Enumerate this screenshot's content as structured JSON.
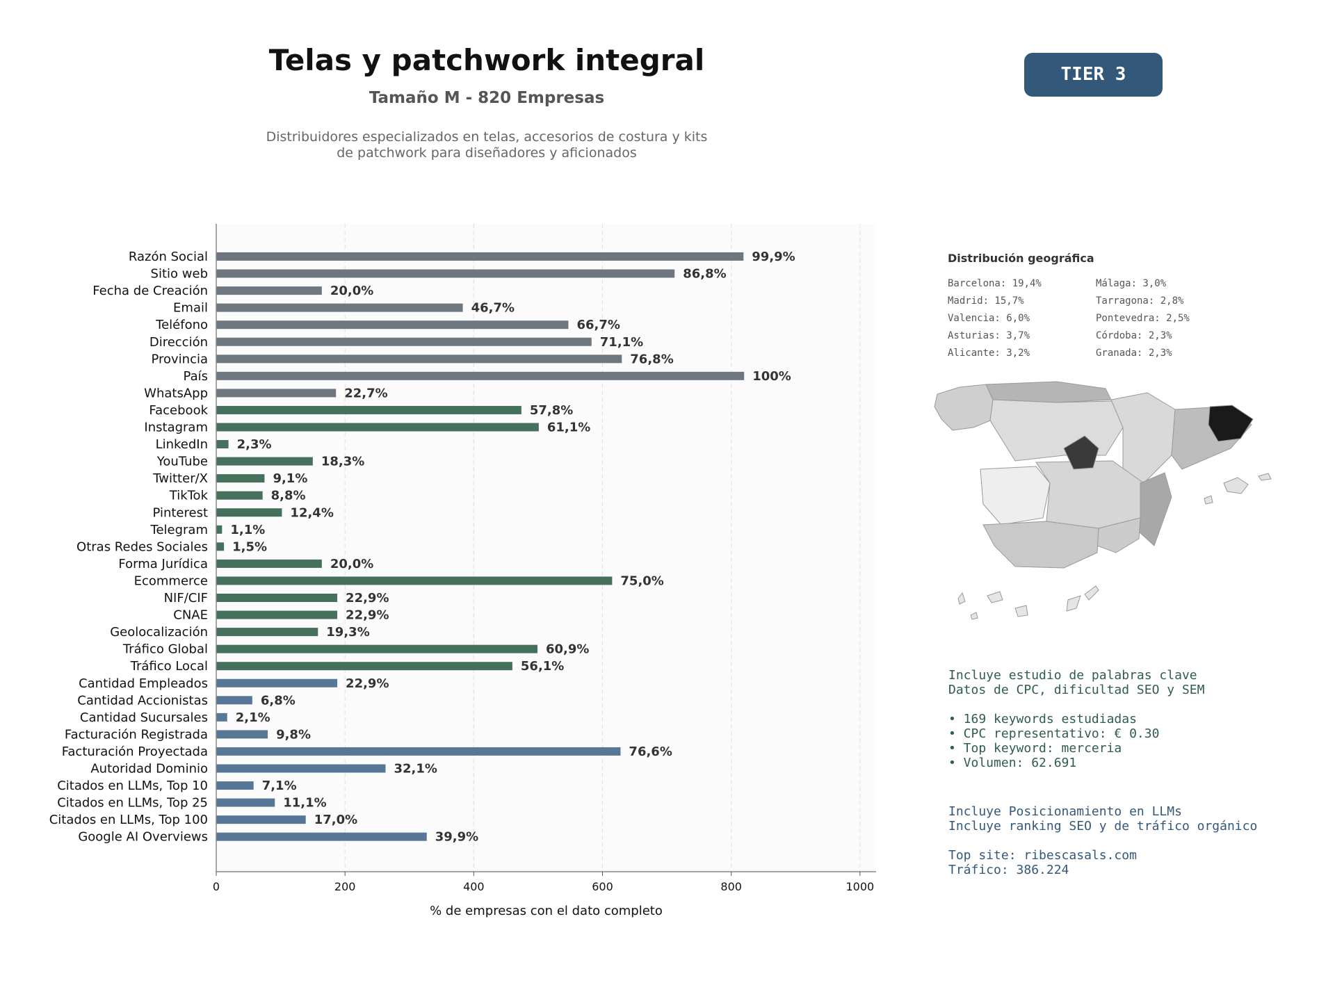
{
  "header": {
    "title": "Telas y patchwork integral",
    "subtitle": "Tamaño M - 820 Empresas",
    "description_line1": "Distribuidores especializados en telas, accesorios de costura y kits",
    "description_line2": "de patchwork para diseñadores y aficionados",
    "tier_badge": "TIER 3"
  },
  "colors": {
    "gray": "#6e7780",
    "green": "#44705c",
    "blue": "#587796",
    "tier": "#34587a"
  },
  "chart_data": {
    "type": "bar",
    "orientation": "horizontal",
    "xlabel": "% de empresas con el dato completo",
    "xlim": [
      0,
      1025
    ],
    "xticks": [
      0,
      200,
      400,
      600,
      800,
      1000
    ],
    "grid": "vertical dashed",
    "bars": [
      {
        "label": "Razón Social",
        "value": 819,
        "pct_label": "99,9%",
        "group": "gray"
      },
      {
        "label": "Sitio web",
        "value": 712,
        "pct_label": "86,8%",
        "group": "gray"
      },
      {
        "label": "Fecha de Creación",
        "value": 164,
        "pct_label": "20,0%",
        "group": "gray"
      },
      {
        "label": "Email",
        "value": 383,
        "pct_label": "46,7%",
        "group": "gray"
      },
      {
        "label": "Teléfono",
        "value": 547,
        "pct_label": "66,7%",
        "group": "gray"
      },
      {
        "label": "Dirección",
        "value": 583,
        "pct_label": "71,1%",
        "group": "gray"
      },
      {
        "label": "Provincia",
        "value": 630,
        "pct_label": "76,8%",
        "group": "gray"
      },
      {
        "label": "País",
        "value": 820,
        "pct_label": "100%",
        "group": "gray"
      },
      {
        "label": "WhatsApp",
        "value": 186,
        "pct_label": "22,7%",
        "group": "gray"
      },
      {
        "label": "Facebook",
        "value": 474,
        "pct_label": "57,8%",
        "group": "green"
      },
      {
        "label": "Instagram",
        "value": 501,
        "pct_label": "61,1%",
        "group": "green"
      },
      {
        "label": "LinkedIn",
        "value": 19,
        "pct_label": "2,3%",
        "group": "green"
      },
      {
        "label": "YouTube",
        "value": 150,
        "pct_label": "18,3%",
        "group": "green"
      },
      {
        "label": "Twitter/X",
        "value": 75,
        "pct_label": "9,1%",
        "group": "green"
      },
      {
        "label": "TikTok",
        "value": 72,
        "pct_label": "8,8%",
        "group": "green"
      },
      {
        "label": "Pinterest",
        "value": 102,
        "pct_label": "12,4%",
        "group": "green"
      },
      {
        "label": "Telegram",
        "value": 9,
        "pct_label": "1,1%",
        "group": "green"
      },
      {
        "label": "Otras Redes Sociales",
        "value": 12,
        "pct_label": "1,5%",
        "group": "green"
      },
      {
        "label": "Forma Jurídica",
        "value": 164,
        "pct_label": "20,0%",
        "group": "green"
      },
      {
        "label": "Ecommerce",
        "value": 615,
        "pct_label": "75,0%",
        "group": "green"
      },
      {
        "label": "NIF/CIF",
        "value": 188,
        "pct_label": "22,9%",
        "group": "green"
      },
      {
        "label": "CNAE",
        "value": 188,
        "pct_label": "22,9%",
        "group": "green"
      },
      {
        "label": "Geolocalización",
        "value": 158,
        "pct_label": "19,3%",
        "group": "green"
      },
      {
        "label": "Tráfico Global",
        "value": 499,
        "pct_label": "60,9%",
        "group": "green"
      },
      {
        "label": "Tráfico Local",
        "value": 460,
        "pct_label": "56,1%",
        "group": "green"
      },
      {
        "label": "Cantidad Empleados",
        "value": 188,
        "pct_label": "22,9%",
        "group": "blue"
      },
      {
        "label": "Cantidad Accionistas",
        "value": 56,
        "pct_label": "6,8%",
        "group": "blue"
      },
      {
        "label": "Cantidad Sucursales",
        "value": 17,
        "pct_label": "2,1%",
        "group": "blue"
      },
      {
        "label": "Facturación Registrada",
        "value": 80,
        "pct_label": "9,8%",
        "group": "blue"
      },
      {
        "label": "Facturación Proyectada",
        "value": 628,
        "pct_label": "76,6%",
        "group": "blue"
      },
      {
        "label": "Autoridad Dominio",
        "value": 263,
        "pct_label": "32,1%",
        "group": "blue"
      },
      {
        "label": "Citados en LLMs, Top 10",
        "value": 58,
        "pct_label": "7,1%",
        "group": "blue"
      },
      {
        "label": "Citados en LLMs, Top 25",
        "value": 91,
        "pct_label": "11,1%",
        "group": "blue"
      },
      {
        "label": "Citados en LLMs, Top 100",
        "value": 139,
        "pct_label": "17,0%",
        "group": "blue"
      },
      {
        "label": "Google AI Overviews",
        "value": 327,
        "pct_label": "39,9%",
        "group": "blue"
      }
    ]
  },
  "geo": {
    "title": "Distribución geográfica",
    "items": [
      "Barcelona: 19,4%",
      "Málaga: 3,0%",
      "Madrid: 15,7%",
      "Tarragona: 2,8%",
      "Valencia: 6,0%",
      "Pontevedra: 2,5%",
      "Asturias: 3,7%",
      "Córdoba: 2,3%",
      "Alicante: 3,2%",
      "Granada: 2,3%"
    ]
  },
  "seo": {
    "line1": "Incluye estudio de palabras clave",
    "line2": "Datos de CPC, dificultad SEO y SEM",
    "bullet1": "• 169 keywords estudiadas",
    "bullet2": "• CPC representativo: € 0.30",
    "bullet3": "• Top keyword: merceria",
    "bullet4": "• Volumen: 62.691"
  },
  "llm": {
    "line1": "Incluye Posicionamiento en LLMs",
    "line2": "Incluye ranking SEO y de tráfico orgánico",
    "line3": "Top site: ribescasals.com",
    "line4": "Tráfico: 386.224"
  }
}
